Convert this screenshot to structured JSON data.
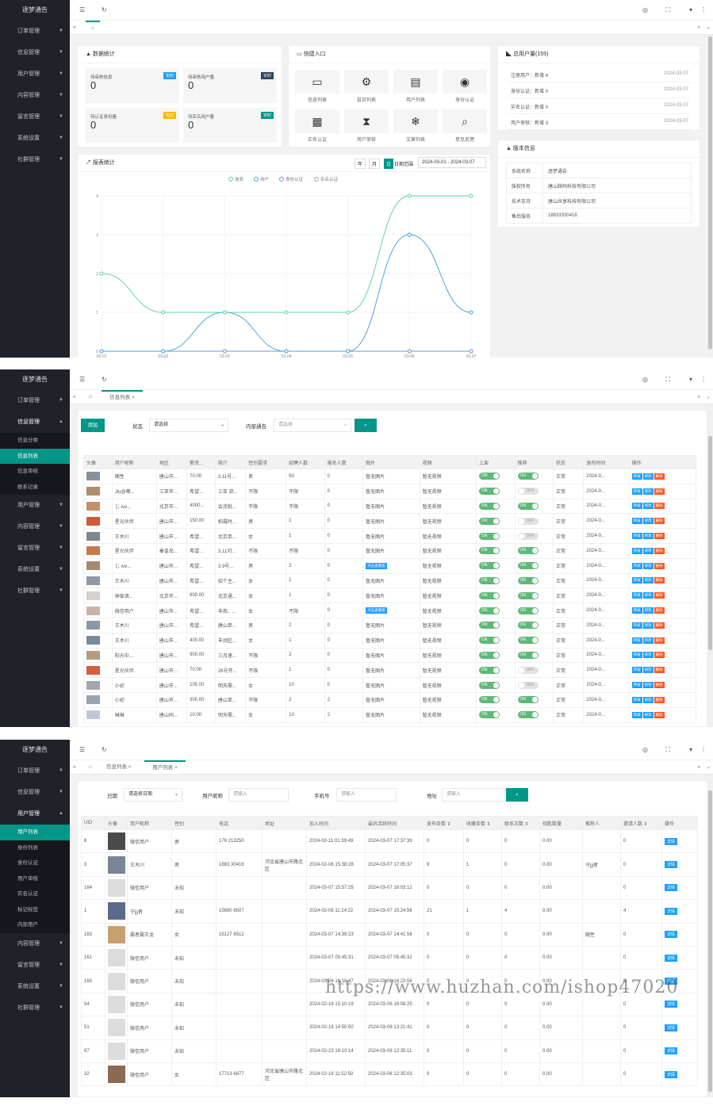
{
  "brand": "逐梦通告",
  "menu": [
    "订单管理",
    "信息管理",
    "用户管理",
    "内容管理",
    "留言管理",
    "系统设置",
    "社群管理"
  ],
  "info_sub": [
    "信息分类",
    "信息列表",
    "信息审核",
    "联系记录"
  ],
  "user_sub": [
    "用户列表",
    "身份列表",
    "身份认证",
    "用户审核",
    "实名认证",
    "标记标签",
    "内部用户"
  ],
  "s1": {
    "stats_title": "数据统计",
    "stats": [
      {
        "label": "待审核信息",
        "value": "0",
        "badge": "实时"
      },
      {
        "label": "待审核用户量",
        "value": "0",
        "badge": "实时"
      },
      {
        "label": "待认证身份量",
        "value": "0",
        "badge": "实时"
      },
      {
        "label": "待实名用户量",
        "value": "0",
        "badge": "实时"
      }
    ],
    "quick_title": "快捷入口",
    "quick": [
      {
        "icon": "▭",
        "label": "信息列表"
      },
      {
        "icon": "⚙",
        "label": "投诉列表"
      },
      {
        "icon": "▤",
        "label": "用户列表"
      },
      {
        "icon": "◉",
        "label": "身份认证"
      },
      {
        "icon": "▦",
        "label": "实名认证"
      },
      {
        "icon": "⧗",
        "label": "用户审核"
      },
      {
        "icon": "❄",
        "label": "文章列表"
      },
      {
        "icon": "⌕",
        "label": "意见反馈"
      }
    ],
    "users_title": "总用户量(155)",
    "users": [
      {
        "name": "注册用户：新增 4",
        "date": "2024-03-07"
      },
      {
        "name": "身份认证：新增 0",
        "date": "2024-03-07"
      },
      {
        "name": "实名认证：新增 0",
        "date": "2024-03-07"
      },
      {
        "name": "用户审核：新增 3",
        "date": "2024-03-07"
      }
    ],
    "ver_title": "版本信息",
    "ver": [
      [
        "系统名称",
        "逐梦通告"
      ],
      [
        "版权所有",
        "唐山踩码科技有限公司"
      ],
      [
        "技术支持",
        "唐山共享科技有限公司"
      ],
      [
        "售后服务",
        "18833330416"
      ]
    ],
    "report_title": "报表统计",
    "btn_year": "年",
    "btn_month": "月",
    "btn_day": "日",
    "range_label": "日期范围",
    "range": "2024-03-01 - 2024-03-07"
  },
  "chart_data": {
    "type": "line",
    "title": "",
    "categories": [
      "03-01",
      "03-02",
      "03-03",
      "03-04",
      "03-05",
      "03-06",
      "03-07"
    ],
    "series": [
      {
        "name": "信息",
        "values": [
          2,
          1,
          1,
          1,
          1,
          4,
          4
        ],
        "color": "#5fd3a3"
      },
      {
        "name": "用户",
        "values": [
          0,
          0,
          1,
          0,
          0,
          3,
          1
        ],
        "color": "#4aa3df"
      },
      {
        "name": "身份认证",
        "values": [
          0,
          0,
          0,
          0,
          0,
          0,
          0
        ],
        "color": "#6b9bd1"
      },
      {
        "name": "实名认证",
        "values": [
          0,
          0,
          0,
          0,
          0,
          0,
          0
        ],
        "color": "#9ab"
      }
    ],
    "yticks": [
      "0",
      "1",
      "2",
      "3",
      "4"
    ],
    "ylim": [
      0,
      4
    ]
  },
  "s2": {
    "tab1": "信息列表",
    "add": "添加",
    "status_label": "状态",
    "status_val": "请选择",
    "notice_label": "内部通告",
    "notice_ph": "请选择",
    "headers": [
      "头像",
      "用户昵称",
      "地区",
      "薪资...",
      "简介",
      "性别要求",
      "招聘人数",
      "报名人数",
      "图片",
      "视频",
      "上架",
      "推荐",
      "状态",
      "发布时间",
      "操作"
    ],
    "rows": [
      [
        "随性",
        "唐山市...",
        "70.00",
        "3.11号...",
        "男",
        "50",
        "0",
        "暂无图片",
        "暂无视频",
        "ON",
        "ON",
        "正常",
        "2024-0..."
      ],
      [
        "Jlu@曦...",
        "三亚市...",
        "希望...",
        "三亚 游...",
        "不限",
        "不限",
        "0",
        "暂无图片",
        "暂无视频",
        "ON",
        "OFF",
        "正常",
        "2024-0..."
      ],
      [
        "じ·ive...",
        "北京市...",
        "4000...",
        "会违就...",
        "不限",
        "不限",
        "0",
        "暂无图片",
        "暂无视频",
        "ON",
        "ON",
        "正常",
        "2024-0..."
      ],
      [
        "星光伙伴",
        "唐山市...",
        "150.00",
        "拍摄时...",
        "男",
        "1",
        "0",
        "暂无图片",
        "暂无视频",
        "ON",
        "OFF",
        "正常",
        "2024-0..."
      ],
      [
        "王木川",
        "唐山市...",
        "希望...",
        "北京单...",
        "女",
        "1",
        "0",
        "暂无图片",
        "暂无视频",
        "ON",
        "OFF",
        "正常",
        "2024-0..."
      ],
      [
        "星光伙伴",
        "秦皇岛...",
        "希望...",
        "3.11河...",
        "不限",
        "不限",
        "0",
        "暂无图片",
        "暂无视频",
        "ON",
        "ON",
        "正常",
        "2024-0..."
      ],
      [
        "じ·ive...",
        "唐山市...",
        "希望...",
        "3.9号...",
        "男",
        "2",
        "0",
        "点击查看图",
        "暂无视频",
        "ON",
        "ON",
        "正常",
        "2024-0..."
      ],
      [
        "王木川",
        "唐山市...",
        "希望...",
        "招个主...",
        "女",
        "1",
        "0",
        "暂无图片",
        "暂无视频",
        "ON",
        "ON",
        "正常",
        "2024-0..."
      ],
      [
        "钟爱滴...",
        "北京市...",
        "600.00",
        "北京通...",
        "女",
        "1",
        "0",
        "暂无图片",
        "暂无视频",
        "ON",
        "ON",
        "正常",
        "2024-0..."
      ],
      [
        "微信用户",
        "唐山市...",
        "希望...",
        "丰南、...",
        "女",
        "不限",
        "0",
        "点击查看图",
        "暂无视频",
        "ON",
        "ON",
        "正常",
        "2024-0..."
      ],
      [
        "王木川",
        "唐山市...",
        "希望...",
        "唐山单...",
        "男",
        "2",
        "0",
        "暂无图片",
        "暂无视频",
        "ON",
        "ON",
        "正常",
        "2024-0..."
      ],
      [
        "王木川",
        "唐山市...",
        "400.00",
        "丰润区...",
        "女",
        "1",
        "0",
        "暂无图片",
        "暂无视频",
        "ON",
        "ON",
        "正常",
        "2024-0..."
      ],
      [
        "阳光中...",
        "唐山市...",
        "900.00",
        "三月速...",
        "不限",
        "2",
        "0",
        "暂无图片",
        "暂无视频",
        "ON",
        "ON",
        "正常",
        "2024-0..."
      ],
      [
        "星光伙伴",
        "唐山市...",
        "70.00",
        "26号开...",
        "不限",
        "1",
        "0",
        "暂无图片",
        "暂无视频",
        "ON",
        "OFF",
        "正常",
        "2024-0..."
      ],
      [
        "小初",
        "唐山市...",
        "105.00",
        "明天需...",
        "女",
        "10",
        "0",
        "暂无图片",
        "暂无视频",
        "ON",
        "OFF",
        "正常",
        "2024-0..."
      ],
      [
        "小初",
        "唐山市...",
        "300.00",
        "唐山单...",
        "不限",
        "2",
        "2",
        "暂无图片",
        "暂无视频",
        "ON",
        "ON",
        "正常",
        "2024-0..."
      ],
      [
        "琳琳",
        "唐山同...",
        "10.00",
        "明天需...",
        "女",
        "10",
        "2",
        "暂无图片",
        "暂无视频",
        "ON",
        "ON",
        "正常",
        "2024-0..."
      ]
    ],
    "act": [
      "审核",
      "修改",
      "删除"
    ]
  },
  "s3": {
    "tab1": "信息列表",
    "tab2": "用户列表",
    "date_label": "日期",
    "date_val": "请选择日期",
    "nick_label": "用户昵称",
    "nick_ph": "请输入",
    "phone_label": "手机号",
    "phone_ph": "请输入",
    "addr_label": "地址",
    "addr_ph": "请输入",
    "headers": [
      "UID",
      "头像",
      "用户昵称",
      "性别",
      "电话",
      "地址",
      "加入时间",
      "最后活跃时间",
      "发布条数 ⇕",
      "收藏条数 ⇕",
      "联系次数 ⇕",
      "钥匙数量",
      "推荐人",
      "邀请人数 ⇕",
      "操作"
    ],
    "rows": [
      [
        "8",
        "微信用户",
        "男",
        "176  213250",
        "",
        "2024-02-11 01:39:49",
        "2024-03-07 17:37:39",
        "0",
        "0",
        "0",
        "0.00",
        "",
        "0"
      ],
      [
        "3",
        "王木川",
        "男",
        "1883  30416",
        "河北省唐山市路北区",
        "2024-02-06 15:38:28",
        "2024-03-07 17:05:37",
        "9",
        "1",
        "0",
        "0.00",
        "守jjj者",
        "0"
      ],
      [
        "164",
        "微信用户",
        "未知",
        "",
        "",
        "2024-03-07 15:57:25",
        "2024-03-07 16:03:12",
        "0",
        "0",
        "0",
        "0.00",
        "",
        "0"
      ],
      [
        "1",
        "守jjj者",
        "未知",
        "15690  8507",
        "",
        "2024-02-06 11:24:22",
        "2024-03-07 15:24:56",
        "21",
        "1",
        "4",
        "0.00",
        "",
        "4"
      ],
      [
        "163",
        "霸者霸王龙",
        "女",
        "15127  6512",
        "",
        "2024-03-07 14:39:23",
        "2024-03-07 14:41:56",
        "0",
        "0",
        "0",
        "0.00",
        "随性",
        "0"
      ],
      [
        "161",
        "微信用户",
        "未知",
        "",
        "",
        "2024-03-07 05:45:31",
        "2024-03-07 05:45:32",
        "0",
        "0",
        "0",
        "0.00",
        "",
        "0"
      ],
      [
        "160",
        "微信用户",
        "未知",
        "",
        "",
        "2024-03-06 16:18:47",
        "2024-03-06 16:23:56",
        "0",
        "0",
        "0",
        "0.00",
        "",
        "0"
      ],
      [
        "54",
        "微信用户",
        "未知",
        "",
        "",
        "2024-02-18 15:10:19",
        "2024-03-06 16:08:25",
        "0",
        "0",
        "0",
        "0.00",
        "",
        "0"
      ],
      [
        "51",
        "微信用户",
        "未知",
        "",
        "",
        "2024-02-18 14:50:50",
        "2024-03-06 13:21:41",
        "0",
        "0",
        "0",
        "0.00",
        "",
        "0"
      ],
      [
        "97",
        "微信用户",
        "未知",
        "",
        "",
        "2024-02-23 16:10:14",
        "2024-03-06 12:35:11",
        "0",
        "0",
        "0",
        "0.00",
        "",
        "0"
      ],
      [
        "32",
        "微信用户",
        "女",
        "17713  6877",
        "河北省唐山市路北区",
        "2024-02-18 11:52:50",
        "2024-03-06 12:35:03",
        "0",
        "0",
        "0",
        "0.00",
        "",
        "0"
      ]
    ],
    "detail": "详情"
  },
  "watermark": "https://www.huzhan.com/ishop47020",
  "colors": {
    "accent": "#009688",
    "sidebar": "#20222a",
    "blue": "#1e9fff",
    "orange": "#ff5722",
    "green": "#5fb878"
  }
}
